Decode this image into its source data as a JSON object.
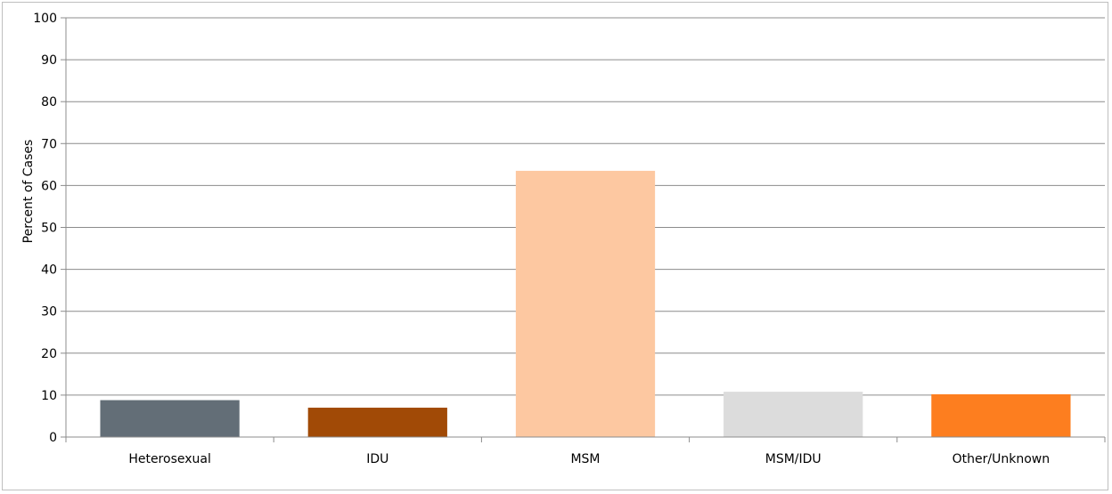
{
  "chart_data": {
    "type": "bar",
    "ylabel": "Percent of Cases",
    "xlabel": "",
    "ylim": [
      0,
      100
    ],
    "yticks": [
      0,
      10,
      20,
      30,
      40,
      50,
      60,
      70,
      80,
      90,
      100
    ],
    "grid": true,
    "categories": [
      "Heterosexual",
      "IDU",
      "MSM",
      "MSM/IDU",
      "Other/Unknown"
    ],
    "values": [
      8.8,
      7.0,
      63.5,
      10.8,
      10.2
    ],
    "colors": [
      "#636e77",
      "#a14a06",
      "#fdc8a1",
      "#dcdcdc",
      "#fd7e1f"
    ]
  }
}
